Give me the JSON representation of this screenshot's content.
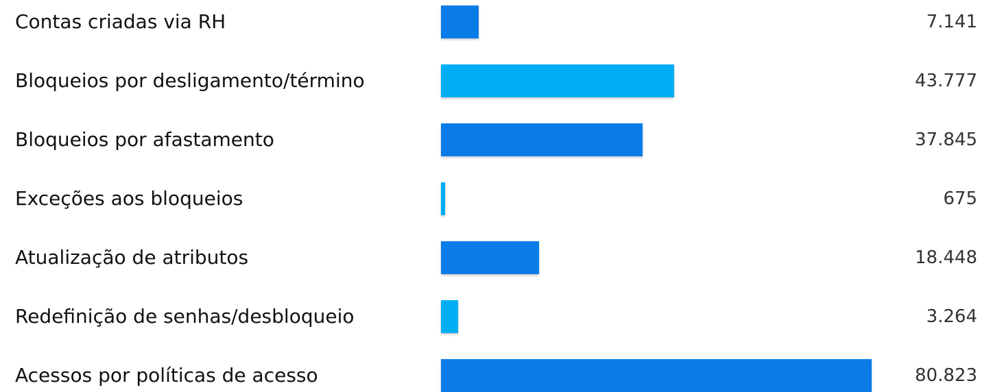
{
  "chart_data": {
    "type": "bar",
    "orientation": "horizontal",
    "categories": [
      "Contas criadas via RH",
      "Bloqueios por desligamento/término",
      "Bloqueios por afastamento",
      "Exceções aos bloqueios",
      "Atualização de atributos",
      "Redefinição de senhas/desbloqueio",
      "Acessos por políticas de acesso"
    ],
    "values": [
      7141,
      43777,
      37845,
      675,
      18448,
      3264,
      80823
    ],
    "value_labels": [
      "7.141",
      "43.777",
      "37.845",
      "675",
      "18.448",
      "3.264",
      "80.823"
    ],
    "bar_colors": [
      "#0a7ce8",
      "#00aef5",
      "#0a7ce8",
      "#00aef5",
      "#0a7ce8",
      "#00aef5",
      "#0a7ce8"
    ],
    "xlim": [
      0,
      80823
    ],
    "grid": false,
    "legend": "none"
  }
}
